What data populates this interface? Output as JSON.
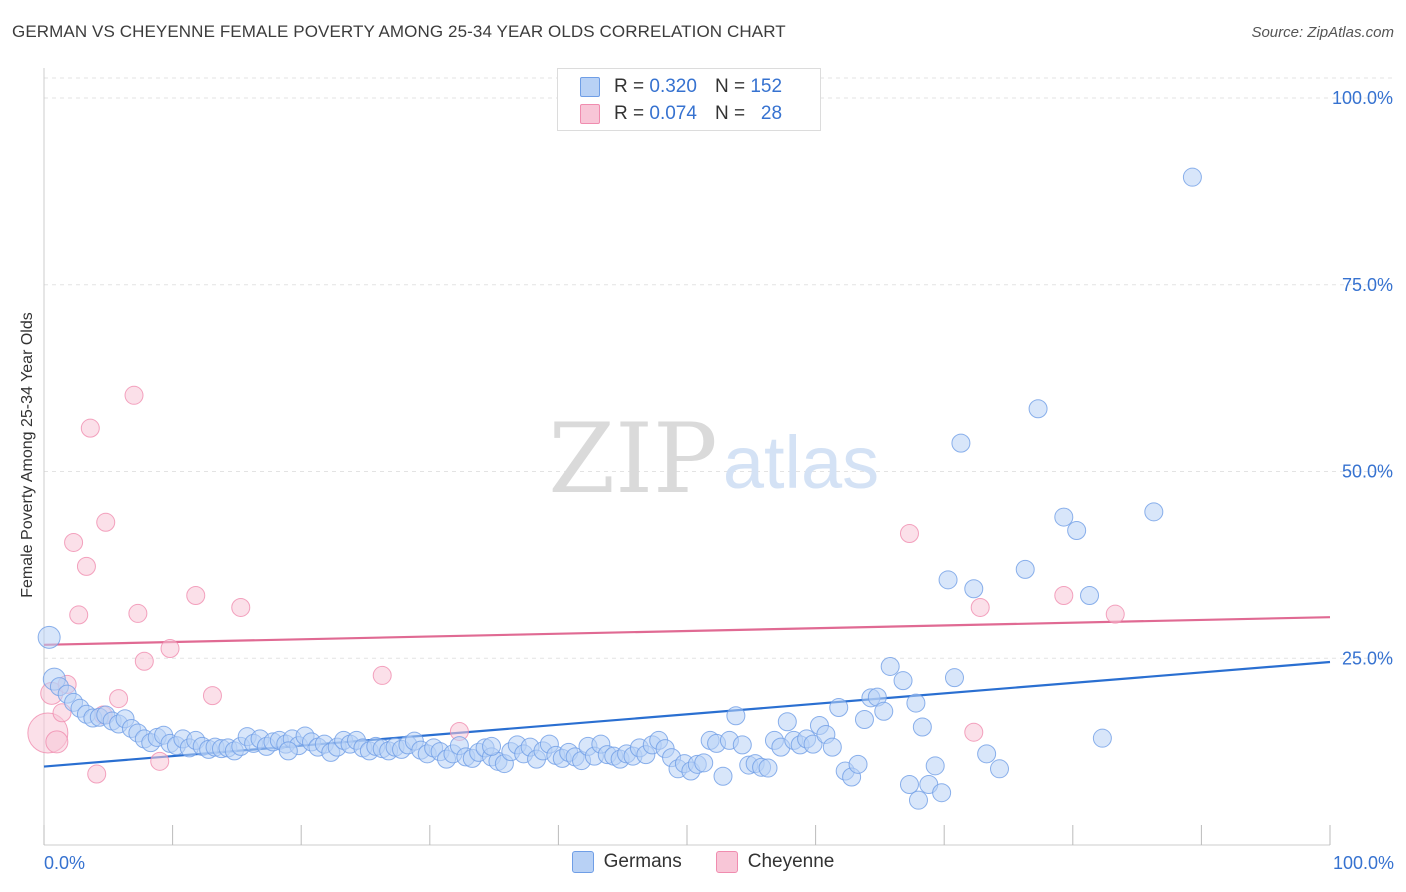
{
  "title": "GERMAN VS CHEYENNE FEMALE POVERTY AMONG 25-34 YEAR OLDS CORRELATION CHART",
  "source": "Source: ZipAtlas.com",
  "watermark": {
    "zip": "ZIP",
    "atlas": "atlas"
  },
  "legend": {
    "r_label": "R =",
    "n_label": "N =",
    "germans": {
      "r": "0.320",
      "n": "152"
    },
    "cheyenne": {
      "r": "0.074",
      "n": "28"
    }
  },
  "bottom_legend": {
    "germans": "Germans",
    "cheyenne": "Cheyenne"
  },
  "colors": {
    "germans": "#6f9ee6",
    "germans_fill": "#b8d1f5",
    "germans_line": "#2a6fd1",
    "cheyenne": "#f08caf",
    "cheyenne_fill": "#f8c6d7",
    "cheyenne_line": "#e06a93",
    "accent": "#3672d0"
  },
  "chart_data": {
    "type": "scatter",
    "title": "GERMAN VS CHEYENNE FEMALE POVERTY AMONG 25-34 YEAR OLDS CORRELATION CHART",
    "xlabel": "",
    "ylabel": "Female Poverty Among 25-34 Year Olds",
    "xlim": [
      0,
      100
    ],
    "ylim": [
      0,
      100
    ],
    "x_tick_labels": [
      "0.0%",
      "100.0%"
    ],
    "y_ticks": [
      25,
      50,
      75,
      100
    ],
    "y_tick_labels": [
      "25.0%",
      "50.0%",
      "75.0%",
      "100.0%"
    ],
    "grid": true,
    "legend_position": "top-center",
    "series": [
      {
        "name": "Germans",
        "trend": {
          "x": [
            0,
            100
          ],
          "y": [
            10.5,
            24.5
          ]
        },
        "points": [
          [
            0.4,
            27.8
          ],
          [
            0.8,
            22.2
          ],
          [
            1.2,
            21.2
          ],
          [
            1.8,
            20.2
          ],
          [
            2.3,
            19.1
          ],
          [
            2.8,
            18.3
          ],
          [
            3.3,
            17.5
          ],
          [
            3.8,
            17.0
          ],
          [
            4.3,
            17.1
          ],
          [
            4.8,
            17.4
          ],
          [
            5.3,
            16.6
          ],
          [
            5.8,
            16.2
          ],
          [
            6.3,
            16.9
          ],
          [
            6.8,
            15.6
          ],
          [
            7.3,
            15.0
          ],
          [
            7.8,
            14.2
          ],
          [
            8.3,
            13.7
          ],
          [
            8.8,
            14.4
          ],
          [
            9.3,
            14.7
          ],
          [
            9.8,
            13.6
          ],
          [
            10.3,
            13.3
          ],
          [
            10.8,
            14.2
          ],
          [
            11.3,
            13.0
          ],
          [
            11.8,
            14.0
          ],
          [
            12.3,
            13.2
          ],
          [
            12.8,
            12.8
          ],
          [
            13.3,
            13.1
          ],
          [
            13.8,
            12.9
          ],
          [
            14.3,
            13.0
          ],
          [
            14.8,
            12.6
          ],
          [
            15.3,
            13.2
          ],
          [
            15.8,
            14.5
          ],
          [
            16.3,
            13.6
          ],
          [
            16.8,
            14.2
          ],
          [
            17.3,
            13.2
          ],
          [
            17.8,
            13.8
          ],
          [
            18.3,
            14.0
          ],
          [
            18.8,
            13.5
          ],
          [
            19.3,
            14.2
          ],
          [
            19.8,
            13.3
          ],
          [
            20.3,
            14.6
          ],
          [
            20.8,
            13.8
          ],
          [
            21.3,
            13.1
          ],
          [
            21.8,
            13.5
          ],
          [
            22.3,
            12.4
          ],
          [
            22.8,
            13.1
          ],
          [
            23.3,
            14.0
          ],
          [
            23.8,
            13.5
          ],
          [
            24.3,
            14.0
          ],
          [
            24.8,
            13.0
          ],
          [
            25.3,
            12.6
          ],
          [
            25.8,
            13.2
          ],
          [
            26.3,
            12.9
          ],
          [
            26.8,
            12.6
          ],
          [
            27.3,
            13.1
          ],
          [
            27.8,
            12.8
          ],
          [
            28.3,
            13.4
          ],
          [
            28.8,
            13.9
          ],
          [
            29.3,
            12.7
          ],
          [
            29.8,
            12.2
          ],
          [
            30.3,
            13.0
          ],
          [
            30.8,
            12.5
          ],
          [
            31.3,
            11.5
          ],
          [
            31.8,
            12.2
          ],
          [
            32.3,
            13.3
          ],
          [
            32.8,
            11.8
          ],
          [
            33.3,
            11.6
          ],
          [
            33.8,
            12.4
          ],
          [
            34.3,
            13.0
          ],
          [
            34.8,
            11.8
          ],
          [
            35.3,
            11.2
          ],
          [
            35.8,
            10.9
          ],
          [
            36.3,
            12.5
          ],
          [
            36.8,
            13.4
          ],
          [
            37.3,
            12.2
          ],
          [
            37.8,
            13.1
          ],
          [
            38.3,
            11.5
          ],
          [
            38.8,
            12.6
          ],
          [
            39.3,
            13.5
          ],
          [
            39.8,
            12.0
          ],
          [
            40.3,
            11.6
          ],
          [
            40.8,
            12.4
          ],
          [
            41.3,
            11.8
          ],
          [
            41.8,
            11.3
          ],
          [
            42.3,
            13.2
          ],
          [
            42.8,
            11.9
          ],
          [
            43.3,
            13.5
          ],
          [
            43.8,
            12.1
          ],
          [
            44.3,
            11.9
          ],
          [
            44.8,
            11.5
          ],
          [
            45.3,
            12.2
          ],
          [
            45.8,
            11.9
          ],
          [
            46.3,
            13.0
          ],
          [
            46.8,
            12.1
          ],
          [
            47.3,
            13.4
          ],
          [
            47.8,
            14.0
          ],
          [
            48.3,
            12.9
          ],
          [
            48.8,
            11.7
          ],
          [
            49.3,
            10.2
          ],
          [
            49.8,
            10.9
          ],
          [
            50.3,
            9.9
          ],
          [
            50.8,
            10.8
          ],
          [
            51.3,
            11.0
          ],
          [
            51.8,
            14.0
          ],
          [
            52.3,
            13.6
          ],
          [
            52.8,
            9.2
          ],
          [
            53.3,
            14.0
          ],
          [
            53.8,
            17.3
          ],
          [
            54.3,
            13.4
          ],
          [
            54.8,
            10.7
          ],
          [
            55.3,
            10.9
          ],
          [
            55.8,
            10.4
          ],
          [
            56.3,
            10.3
          ],
          [
            56.8,
            14.0
          ],
          [
            57.3,
            13.1
          ],
          [
            57.8,
            16.5
          ],
          [
            58.3,
            14.0
          ],
          [
            58.8,
            13.4
          ],
          [
            59.3,
            14.2
          ],
          [
            59.8,
            13.5
          ],
          [
            60.3,
            16.0
          ],
          [
            60.8,
            14.8
          ],
          [
            61.3,
            13.1
          ],
          [
            61.8,
            18.4
          ],
          [
            62.3,
            9.9
          ],
          [
            62.8,
            9.1
          ],
          [
            63.3,
            10.8
          ],
          [
            63.8,
            16.8
          ],
          [
            64.3,
            19.7
          ],
          [
            64.8,
            19.8
          ],
          [
            65.3,
            17.9
          ],
          [
            65.8,
            23.9
          ],
          [
            66.8,
            22.0
          ],
          [
            67.3,
            8.1
          ],
          [
            67.8,
            19.0
          ],
          [
            68.3,
            15.8
          ],
          [
            68.8,
            8.1
          ],
          [
            69.3,
            10.6
          ],
          [
            69.8,
            7.0
          ],
          [
            70.3,
            35.5
          ],
          [
            70.8,
            22.4
          ],
          [
            71.3,
            53.8
          ],
          [
            72.3,
            34.3
          ],
          [
            73.3,
            12.2
          ],
          [
            74.3,
            10.2
          ],
          [
            76.3,
            36.9
          ],
          [
            77.3,
            58.4
          ],
          [
            79.3,
            43.9
          ],
          [
            80.3,
            42.1
          ],
          [
            81.3,
            33.4
          ],
          [
            82.3,
            14.3
          ],
          [
            86.3,
            44.6
          ],
          [
            89.3,
            89.4
          ],
          [
            34.8,
            13.2
          ],
          [
            19.0,
            12.6
          ],
          [
            68.0,
            6.0
          ]
        ]
      },
      {
        "name": "Cheyenne",
        "trend": {
          "x": [
            0,
            100
          ],
          "y": [
            26.8,
            30.5
          ]
        },
        "points": [
          [
            0.3,
            15.0
          ],
          [
            0.6,
            20.3
          ],
          [
            1.0,
            13.8
          ],
          [
            1.4,
            17.7
          ],
          [
            1.8,
            21.5
          ],
          [
            2.3,
            40.5
          ],
          [
            2.7,
            30.8
          ],
          [
            3.3,
            37.3
          ],
          [
            3.6,
            55.8
          ],
          [
            4.1,
            9.5
          ],
          [
            4.6,
            17.4
          ],
          [
            4.8,
            43.2
          ],
          [
            5.8,
            19.6
          ],
          [
            7.0,
            60.2
          ],
          [
            7.3,
            31.0
          ],
          [
            7.8,
            24.6
          ],
          [
            9.0,
            11.2
          ],
          [
            9.8,
            26.3
          ],
          [
            11.8,
            33.4
          ],
          [
            13.1,
            20.0
          ],
          [
            15.3,
            31.8
          ],
          [
            26.3,
            22.7
          ],
          [
            32.3,
            15.2
          ],
          [
            67.3,
            41.7
          ],
          [
            72.3,
            15.1
          ],
          [
            72.8,
            31.8
          ],
          [
            79.3,
            33.4
          ],
          [
            83.3,
            30.9
          ]
        ]
      }
    ]
  }
}
